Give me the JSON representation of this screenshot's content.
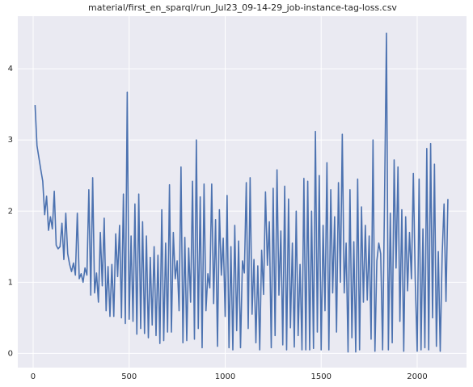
{
  "chart_data": {
    "type": "line",
    "title": "material/first_en_sparql/run_Jul23_09-14-29_job-instance-tag-loss.csv",
    "x": [
      10,
      20,
      30,
      40,
      50,
      60,
      70,
      80,
      90,
      100,
      110,
      120,
      130,
      140,
      150,
      160,
      170,
      180,
      190,
      200,
      210,
      220,
      230,
      240,
      250,
      260,
      270,
      280,
      290,
      300,
      310,
      320,
      330,
      340,
      350,
      360,
      370,
      380,
      390,
      400,
      410,
      420,
      430,
      440,
      450,
      460,
      470,
      480,
      490,
      500,
      510,
      520,
      530,
      540,
      550,
      560,
      570,
      580,
      590,
      600,
      610,
      620,
      630,
      640,
      650,
      660,
      670,
      680,
      690,
      700,
      710,
      720,
      730,
      740,
      750,
      760,
      770,
      780,
      790,
      800,
      810,
      820,
      830,
      840,
      850,
      860,
      870,
      880,
      890,
      900,
      910,
      920,
      930,
      940,
      950,
      960,
      970,
      980,
      990,
      1000,
      1010,
      1020,
      1030,
      1040,
      1050,
      1060,
      1070,
      1080,
      1090,
      1100,
      1110,
      1120,
      1130,
      1140,
      1150,
      1160,
      1170,
      1180,
      1190,
      1200,
      1210,
      1220,
      1230,
      1240,
      1250,
      1260,
      1270,
      1280,
      1290,
      1300,
      1310,
      1320,
      1330,
      1340,
      1350,
      1360,
      1370,
      1380,
      1390,
      1400,
      1410,
      1420,
      1430,
      1440,
      1450,
      1460,
      1470,
      1480,
      1490,
      1500,
      1510,
      1520,
      1530,
      1540,
      1550,
      1560,
      1570,
      1580,
      1590,
      1600,
      1610,
      1620,
      1630,
      1640,
      1650,
      1660,
      1670,
      1680,
      1690,
      1700,
      1710,
      1720,
      1730,
      1740,
      1750,
      1760,
      1770,
      1780,
      1790,
      1800,
      1810,
      1820,
      1830,
      1840,
      1850,
      1860,
      1870,
      1880,
      1890,
      1900,
      1910,
      1920,
      1930,
      1940,
      1950,
      1960,
      1970,
      1980,
      1990,
      2000,
      2010,
      2020,
      2030,
      2040,
      2050,
      2060,
      2070,
      2080,
      2090,
      2100,
      2110,
      2120,
      2130,
      2140,
      2150,
      2160
    ],
    "series": [
      {
        "color": "#4c72b0",
        "values": [
          3.49,
          2.92,
          2.75,
          2.58,
          2.42,
          1.95,
          2.21,
          1.73,
          1.92,
          1.75,
          2.28,
          1.52,
          1.47,
          1.5,
          1.83,
          1.32,
          1.97,
          1.4,
          1.25,
          1.15,
          1.27,
          1.1,
          1.97,
          1.05,
          1.12,
          1.0,
          1.2,
          1.1,
          2.3,
          0.82,
          2.47,
          0.85,
          1.13,
          0.72,
          1.7,
          0.95,
          1.9,
          0.6,
          1.22,
          0.52,
          1.25,
          0.52,
          1.68,
          1.08,
          1.8,
          0.5,
          2.24,
          0.42,
          3.67,
          0.48,
          1.65,
          0.45,
          2.1,
          0.27,
          2.24,
          0.35,
          1.85,
          0.28,
          1.65,
          0.22,
          1.35,
          0.4,
          1.5,
          0.25,
          1.38,
          0.14,
          2.02,
          0.18,
          1.55,
          0.3,
          2.37,
          0.3,
          1.7,
          1.05,
          1.3,
          0.6,
          2.62,
          0.15,
          1.63,
          0.18,
          1.48,
          0.72,
          2.42,
          0.2,
          3.0,
          0.35,
          2.2,
          0.08,
          2.38,
          0.6,
          1.12,
          0.92,
          2.38,
          0.7,
          1.88,
          0.1,
          2.02,
          1.1,
          1.62,
          0.52,
          2.22,
          0.08,
          1.5,
          0.05,
          1.8,
          0.32,
          1.58,
          0.08,
          1.3,
          1.13,
          2.4,
          0.35,
          2.47,
          0.55,
          1.32,
          0.15,
          1.23,
          0.05,
          1.45,
          0.83,
          2.27,
          1.24,
          1.85,
          0.08,
          2.32,
          0.25,
          2.58,
          0.82,
          1.72,
          0.12,
          2.35,
          0.05,
          2.17,
          0.36,
          1.55,
          0.09,
          2.0,
          0.25,
          1.25,
          0.05,
          2.46,
          0.05,
          2.42,
          0.05,
          2.0,
          0.07,
          3.12,
          0.3,
          2.5,
          0.05,
          1.8,
          0.6,
          2.68,
          0.05,
          2.3,
          0.85,
          1.92,
          0.3,
          2.4,
          1.0,
          3.08,
          0.85,
          1.55,
          0.02,
          2.3,
          0.22,
          1.57,
          0.02,
          2.45,
          0.05,
          2.06,
          0.72,
          1.8,
          0.75,
          1.65,
          0.2,
          3.0,
          0.03,
          1.3,
          1.55,
          1.4,
          0.05,
          2.15,
          4.5,
          0.05,
          1.97,
          0.15,
          2.72,
          1.2,
          2.62,
          0.45,
          2.02,
          0.03,
          1.92,
          0.88,
          1.7,
          1.05,
          2.53,
          1.02,
          0.03,
          2.45,
          0.05,
          1.75,
          0.08,
          2.88,
          0.05,
          2.95,
          0.5,
          2.66,
          0.1,
          1.43,
          0.03,
          1.38,
          2.1,
          0.73,
          2.17
        ]
      }
    ],
    "xlim": [
      -80,
      2257
    ],
    "ylim": [
      -0.2,
      4.74
    ],
    "xticks": [
      0,
      500,
      1000,
      1500,
      2000
    ],
    "yticks": [
      0,
      1,
      2,
      3,
      4
    ],
    "grid": true
  }
}
